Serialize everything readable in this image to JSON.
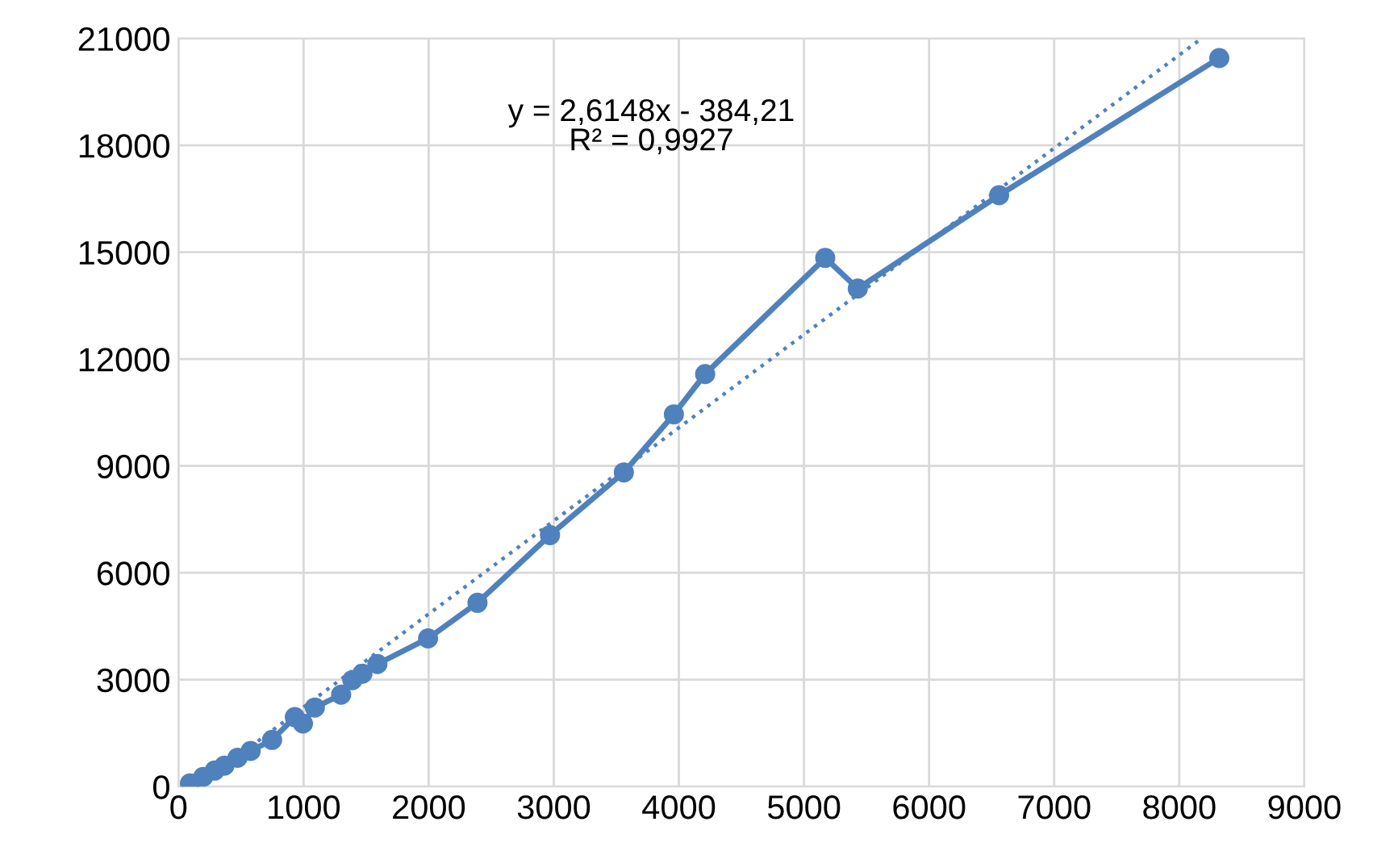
{
  "chart_data": {
    "type": "line",
    "xlim": [
      0,
      9000
    ],
    "ylim": [
      0,
      21000
    ],
    "xticks": [
      0,
      1000,
      2000,
      3000,
      4000,
      5000,
      6000,
      7000,
      8000,
      9000
    ],
    "yticks": [
      0,
      3000,
      6000,
      9000,
      12000,
      15000,
      18000,
      21000
    ],
    "grid": true,
    "legend": false,
    "annotations": [
      "y = 2,6148x - 384,21\nR² = 0,9927"
    ],
    "series": [
      {
        "marker": "circle",
        "line_style": "solid",
        "color": "#4f81bd",
        "x": [
          92,
          197,
          289,
          367,
          472,
          577,
          748,
          930,
          995,
          1090,
          1300,
          1390,
          1470,
          1590,
          1995,
          2390,
          2970,
          3560,
          3960,
          4210,
          5170,
          5430,
          6560,
          8320
        ],
        "values": [
          90,
          270,
          450,
          590,
          810,
          1000,
          1310,
          1950,
          1770,
          2220,
          2580,
          2990,
          3170,
          3440,
          4160,
          5160,
          7060,
          8820,
          10450,
          11580,
          14840,
          13980,
          16600,
          20450
        ]
      },
      {
        "marker": "none",
        "line_style": "dotted",
        "color": "#4f81bd",
        "x": [
          147,
          8178
        ],
        "values": [
          0,
          21000
        ]
      }
    ]
  }
}
